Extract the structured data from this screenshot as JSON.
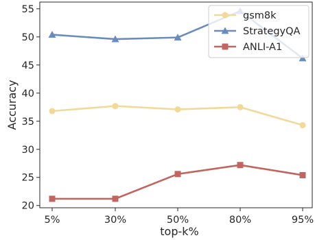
{
  "chart_data": {
    "type": "line",
    "title": "",
    "xlabel": "top-k%",
    "ylabel": "Accuracy",
    "categories": [
      "5%",
      "30%",
      "50%",
      "80%",
      "95%"
    ],
    "ylim": [
      19.6,
      56.2
    ],
    "yticks": [
      20,
      25,
      30,
      35,
      40,
      45,
      50,
      55
    ],
    "grid": false,
    "legend_position": "top-right",
    "series": [
      {
        "name": "gsm8k",
        "color": "#f1d999",
        "marker": "circle",
        "values": [
          36.8,
          37.7,
          37.1,
          37.5,
          34.3
        ]
      },
      {
        "name": "StrategyQA",
        "color": "#6a8bbb",
        "marker": "triangle",
        "values": [
          50.4,
          49.6,
          49.9,
          54.6,
          46.2
        ]
      },
      {
        "name": "ANLI-A1",
        "color": "#c0655f",
        "marker": "square",
        "values": [
          21.2,
          21.2,
          25.6,
          27.2,
          25.4
        ]
      }
    ]
  }
}
